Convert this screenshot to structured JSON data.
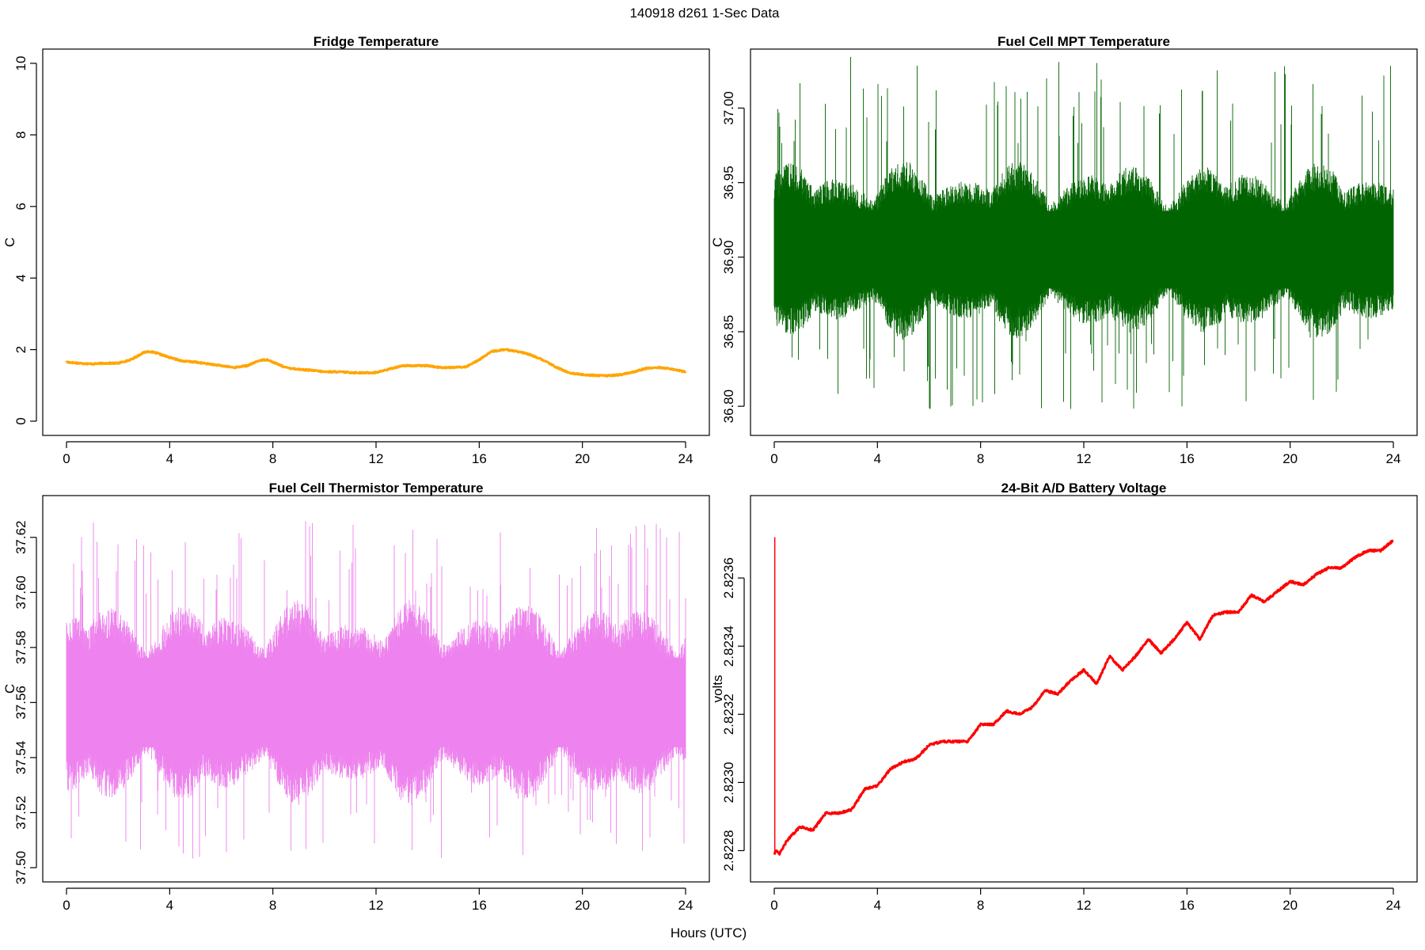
{
  "figure": {
    "title": "140918   d261   1-Sec Data",
    "xlabel": "Hours (UTC)"
  },
  "chart_data": [
    {
      "type": "line",
      "title": "Fridge Temperature",
      "xlabel": "",
      "ylabel": "C",
      "color": "#ffa500",
      "xlim": [
        0,
        24
      ],
      "ylim": [
        0,
        10
      ],
      "xticks": [
        0,
        4,
        8,
        12,
        16,
        20,
        24
      ],
      "yticks": [
        0,
        2,
        4,
        6,
        8,
        10
      ],
      "ytick_labels": [
        "0",
        "2",
        "4",
        "6",
        "8",
        "10"
      ],
      "style": "smooth",
      "noise": 0.02,
      "x": [
        0,
        0.5,
        1,
        1.5,
        2,
        2.5,
        3,
        3.2,
        3.5,
        4,
        4.5,
        5,
        5.5,
        6,
        6.5,
        7,
        7.5,
        7.8,
        8,
        8.5,
        9,
        9.5,
        10,
        10.5,
        11,
        11.5,
        12,
        12.5,
        13,
        13.5,
        14,
        14.5,
        15,
        15.5,
        16,
        16.5,
        17,
        17.5,
        18,
        18.5,
        19,
        19.5,
        20,
        20.5,
        21,
        21.5,
        22,
        22.5,
        23,
        23.5,
        24
      ],
      "y": [
        1.65,
        1.62,
        1.6,
        1.62,
        1.62,
        1.72,
        1.92,
        1.95,
        1.9,
        1.78,
        1.68,
        1.65,
        1.6,
        1.55,
        1.5,
        1.55,
        1.7,
        1.72,
        1.65,
        1.5,
        1.45,
        1.42,
        1.38,
        1.38,
        1.36,
        1.35,
        1.36,
        1.45,
        1.55,
        1.55,
        1.55,
        1.5,
        1.5,
        1.52,
        1.72,
        1.95,
        2.0,
        1.95,
        1.85,
        1.7,
        1.5,
        1.35,
        1.3,
        1.28,
        1.27,
        1.3,
        1.38,
        1.48,
        1.5,
        1.45,
        1.38
      ]
    },
    {
      "type": "line",
      "title": "Fuel Cell MPT Temperature",
      "xlabel": "",
      "ylabel": "C",
      "color": "#006400",
      "xlim": [
        0,
        24
      ],
      "ylim": [
        36.79,
        37.03
      ],
      "xticks": [
        0,
        4,
        8,
        12,
        16,
        20,
        24
      ],
      "yticks": [
        36.8,
        36.85,
        36.9,
        36.95,
        37.0
      ],
      "ytick_labels": [
        "36.80",
        "36.85",
        "36.90",
        "36.95",
        "37.00"
      ],
      "style": "noise",
      "center": 36.905,
      "band_low": 36.865,
      "band_high": 36.945,
      "min_value": 36.798,
      "max_value": 37.035
    },
    {
      "type": "line",
      "title": "Fuel Cell Thermistor Temperature",
      "xlabel": "",
      "ylabel": "C",
      "color": "#ee82ee",
      "xlim": [
        0,
        24
      ],
      "ylim": [
        37.5,
        37.63
      ],
      "xticks": [
        0,
        4,
        8,
        12,
        16,
        20,
        24
      ],
      "yticks": [
        37.5,
        37.52,
        37.54,
        37.56,
        37.58,
        37.6,
        37.62
      ],
      "ytick_labels": [
        "37.50",
        "37.52",
        "37.54",
        "37.56",
        "37.58",
        "37.60",
        "37.62"
      ],
      "style": "noise",
      "center": 37.56,
      "band_low": 37.535,
      "band_high": 37.585,
      "min_value": 37.503,
      "max_value": 37.627
    },
    {
      "type": "line",
      "title": "24-Bit A/D Battery Voltage",
      "xlabel": "",
      "ylabel": "volts",
      "color": "#ff0000",
      "xlim": [
        0,
        24
      ],
      "ylim": [
        2.82275,
        2.8238
      ],
      "xticks": [
        0,
        4,
        8,
        12,
        16,
        20,
        24
      ],
      "yticks": [
        2.8228,
        2.823,
        2.8232,
        2.8234,
        2.8236
      ],
      "ytick_labels": [
        "2.8228",
        "2.8230",
        "2.8232",
        "2.8234",
        "2.8236"
      ],
      "style": "smooth",
      "noise": 3e-06,
      "spike": {
        "x": 0.02,
        "y_from": 2.82279,
        "y_to": 2.82372
      },
      "x": [
        0,
        0.05,
        0.2,
        0.5,
        1,
        1.5,
        2,
        2.5,
        3,
        3.5,
        4,
        4.5,
        5,
        5.5,
        6,
        6.5,
        7,
        7.5,
        8,
        8.5,
        9,
        9.5,
        10,
        10.5,
        11,
        11.5,
        12,
        12.5,
        13,
        13.5,
        14,
        14.5,
        15,
        15.5,
        16,
        16.5,
        17,
        17.5,
        18,
        18.5,
        19,
        19.5,
        20,
        20.5,
        21,
        21.5,
        22,
        22.5,
        23,
        23.5,
        24
      ],
      "y": [
        2.82279,
        2.8228,
        2.82279,
        2.82283,
        2.82287,
        2.82286,
        2.82291,
        2.82291,
        2.82292,
        2.82298,
        2.82299,
        2.82304,
        2.82306,
        2.82307,
        2.82311,
        2.82312,
        2.82312,
        2.82312,
        2.82317,
        2.82317,
        2.82321,
        2.8232,
        2.82322,
        2.82327,
        2.82326,
        2.8233,
        2.82333,
        2.82329,
        2.82337,
        2.82333,
        2.82337,
        2.82342,
        2.82338,
        2.82342,
        2.82347,
        2.82342,
        2.82349,
        2.8235,
        2.8235,
        2.82355,
        2.82353,
        2.82356,
        2.82359,
        2.82358,
        2.82361,
        2.82363,
        2.82363,
        2.82366,
        2.82368,
        2.82368,
        2.82371
      ]
    }
  ]
}
